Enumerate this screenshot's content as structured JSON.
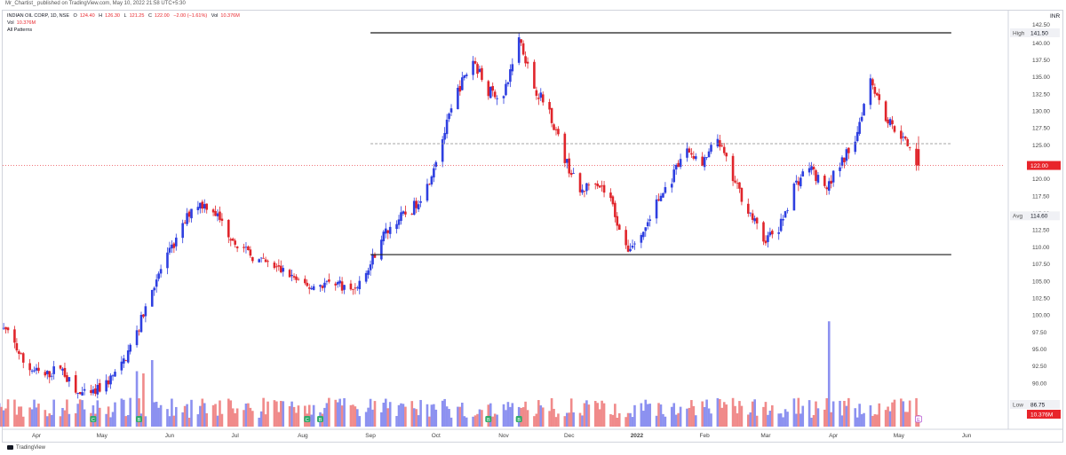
{
  "header": {
    "text": "Mr_Chartist_ published on TradingView.com, May 10, 2022 21:58 UTC+5:30"
  },
  "legend": {
    "symbol": "INDIAN OIL CORP, 1D, NSE",
    "o_label": "O",
    "o": "124.40",
    "h_label": "H",
    "h": "126.30",
    "l_label": "L",
    "l": "121.25",
    "c_label": "C",
    "c": "122.00",
    "change": "−2.00 (−1.61%)",
    "vol_label": "Vol",
    "vol": "10.376M",
    "vol_row_label": "Vol",
    "vol_row_value": "10.376M",
    "patterns": "All Patterns"
  },
  "footer": {
    "brand": "TradingView"
  },
  "colors": {
    "up": "#2e3fe0",
    "down": "#e0252b",
    "vol_up": "#8c91f0",
    "vol_down": "#f08a8a",
    "frame": "#d1d4dc",
    "price_line": "#e8252b"
  },
  "chart_data": {
    "type": "candlestick",
    "currency": "INR",
    "ylim": [
      86.5,
      143.5
    ],
    "y_ticks": [
      90,
      92.5,
      95,
      97.5,
      100,
      102.5,
      105,
      107.5,
      110,
      112.5,
      115,
      117.5,
      120,
      125,
      127.5,
      130,
      132.5,
      135,
      137.5,
      140
    ],
    "x_ticks": [
      {
        "date": "2021-04-01",
        "label": "Apr"
      },
      {
        "date": "2021-05-01",
        "label": "May"
      },
      {
        "date": "2021-06-01",
        "label": "Jun"
      },
      {
        "date": "2021-07-01",
        "label": "Jul"
      },
      {
        "date": "2021-08-01",
        "label": "Aug"
      },
      {
        "date": "2021-09-01",
        "label": "Sep"
      },
      {
        "date": "2021-10-01",
        "label": "Oct"
      },
      {
        "date": "2021-11-01",
        "label": "Nov"
      },
      {
        "date": "2021-12-01",
        "label": "Dec"
      },
      {
        "date": "2022-01-01",
        "label": "2022",
        "bold": true
      },
      {
        "date": "2022-02-01",
        "label": "Feb"
      },
      {
        "date": "2022-03-01",
        "label": "Mar"
      },
      {
        "date": "2022-04-01",
        "label": "Apr"
      },
      {
        "date": "2022-05-01",
        "label": "May"
      },
      {
        "date": "2022-06-01",
        "label": "Jun"
      }
    ],
    "scale_labels": [
      {
        "tag": "High",
        "value": "141.50"
      },
      {
        "tag": "Avg",
        "value": "114.60"
      },
      {
        "tag": "Low",
        "value": "86.75"
      },
      {
        "tag": "",
        "value": "122.00",
        "current": true
      },
      {
        "tag": "",
        "value": "10.376M",
        "current": true
      },
      {
        "tag": "",
        "value": "142.50"
      }
    ],
    "lines": [
      {
        "name": "resistance",
        "start": "2021-09-01",
        "end": "2022-05-25",
        "y": 141.5,
        "style": "solid"
      },
      {
        "name": "mid",
        "start": "2021-09-01",
        "end": "2022-05-25",
        "y": 125.2,
        "style": "dashed"
      },
      {
        "name": "support",
        "start": "2021-09-01",
        "end": "2022-05-25",
        "y": 108.9,
        "style": "solid"
      }
    ],
    "current_price": 122.0,
    "pattern_markers": [
      {
        "date": "2021-04-27",
        "label": "C"
      },
      {
        "date": "2021-05-18",
        "label": "B"
      },
      {
        "date": "2021-08-03",
        "label": "C"
      },
      {
        "date": "2021-08-09",
        "label": "B"
      },
      {
        "date": "2021-10-25",
        "label": "B"
      },
      {
        "date": "2021-11-08",
        "label": "B"
      },
      {
        "date": "2022-05-10",
        "label": "E"
      }
    ],
    "keypoints": [
      [
        "2021-03-15",
        98.5
      ],
      [
        "2021-03-20",
        97.0
      ],
      [
        "2021-03-27",
        92.5
      ],
      [
        "2021-04-05",
        91.0
      ],
      [
        "2021-04-12",
        92.5
      ],
      [
        "2021-04-19",
        88.5
      ],
      [
        "2021-04-26",
        88.2
      ],
      [
        "2021-05-03",
        90.0
      ],
      [
        "2021-05-10",
        92.5
      ],
      [
        "2021-05-17",
        97.5
      ],
      [
        "2021-05-24",
        104.0
      ],
      [
        "2021-05-30",
        108.0
      ],
      [
        "2021-06-05",
        111.5
      ],
      [
        "2021-06-12",
        116.5
      ],
      [
        "2021-06-20",
        116.0
      ],
      [
        "2021-06-28",
        112.0
      ],
      [
        "2021-07-05",
        109.5
      ],
      [
        "2021-07-12",
        108.0
      ],
      [
        "2021-07-19",
        107.0
      ],
      [
        "2021-07-26",
        106.0
      ],
      [
        "2021-08-02",
        104.0
      ],
      [
        "2021-08-09",
        104.5
      ],
      [
        "2021-08-16",
        105.0
      ],
      [
        "2021-08-23",
        103.5
      ],
      [
        "2021-08-30",
        106.0
      ],
      [
        "2021-09-06",
        111.5
      ],
      [
        "2021-09-13",
        114.0
      ],
      [
        "2021-09-20",
        115.5
      ],
      [
        "2021-09-27",
        119.0
      ],
      [
        "2021-10-04",
        126.0
      ],
      [
        "2021-10-11",
        133.0
      ],
      [
        "2021-10-18",
        137.5
      ],
      [
        "2021-10-25",
        133.0
      ],
      [
        "2021-11-01",
        132.0
      ],
      [
        "2021-11-08",
        141.0
      ],
      [
        "2021-11-15",
        133.5
      ],
      [
        "2021-11-22",
        130.0
      ],
      [
        "2021-11-29",
        123.0
      ],
      [
        "2021-12-06",
        118.0
      ],
      [
        "2021-12-13",
        120.0
      ],
      [
        "2021-12-20",
        117.0
      ],
      [
        "2021-12-27",
        109.5
      ],
      [
        "2022-01-03",
        111.5
      ],
      [
        "2022-01-10",
        116.5
      ],
      [
        "2022-01-17",
        120.0
      ],
      [
        "2022-01-24",
        124.5
      ],
      [
        "2022-01-31",
        122.0
      ],
      [
        "2022-02-07",
        126.0
      ],
      [
        "2022-02-14",
        120.0
      ],
      [
        "2022-02-21",
        115.5
      ],
      [
        "2022-02-28",
        111.0
      ],
      [
        "2022-03-07",
        112.5
      ],
      [
        "2022-03-14",
        119.0
      ],
      [
        "2022-03-21",
        122.0
      ],
      [
        "2022-03-28",
        118.5
      ],
      [
        "2022-04-04",
        122.0
      ],
      [
        "2022-04-11",
        126.0
      ],
      [
        "2022-04-18",
        135.0
      ],
      [
        "2022-04-25",
        129.0
      ],
      [
        "2022-05-02",
        126.5
      ],
      [
        "2022-05-10",
        122.0
      ]
    ],
    "last_candle": {
      "date": "2022-05-10",
      "open": 124.4,
      "high": 126.3,
      "low": 121.25,
      "close": 122.0,
      "volume": 10376000
    },
    "volume_spikes": [
      {
        "date": "2021-05-17",
        "volume": 50.0
      },
      {
        "date": "2021-05-20",
        "volume": 48.0
      },
      {
        "date": "2021-05-24",
        "volume": 60.0
      },
      {
        "date": "2022-03-30",
        "volume": 95.0
      }
    ]
  }
}
